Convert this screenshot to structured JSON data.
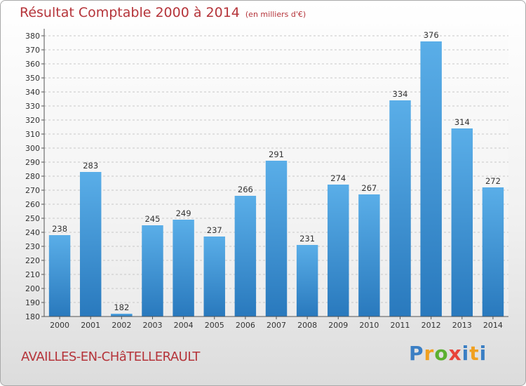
{
  "header": {
    "title": "Résultat Comptable 2000 à 2014",
    "subtitle": "(en milliers d'€)"
  },
  "footer": {
    "town": "AVAILLES-EN-CHâTELLERAULT",
    "brand": [
      "P",
      "r",
      "o",
      "x",
      "i",
      "t",
      "i"
    ]
  },
  "colors": {
    "title": "#b5343a",
    "bar_top": "#5aaee8",
    "bar_bottom": "#2979bd"
  },
  "chart_data": {
    "type": "bar",
    "title": "Résultat Comptable 2000 à 2014",
    "subtitle": "(en milliers d'€)",
    "categories": [
      "2000",
      "2001",
      "2002",
      "2003",
      "2004",
      "2005",
      "2006",
      "2007",
      "2008",
      "2009",
      "2010",
      "2011",
      "2012",
      "2013",
      "2014"
    ],
    "values": [
      238,
      283,
      182,
      245,
      249,
      237,
      266,
      291,
      231,
      274,
      267,
      334,
      376,
      314,
      272
    ],
    "ylim": [
      180,
      380
    ],
    "ytick_step": 10,
    "grid": true,
    "xlabel": "",
    "ylabel": ""
  }
}
